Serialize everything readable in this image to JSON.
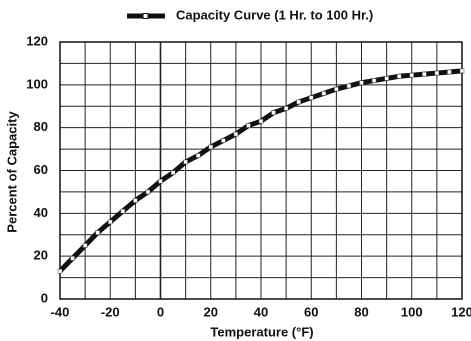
{
  "chart_data": {
    "type": "line",
    "legend_label": "Capacity Curve (1 Hr. to 100 Hr.)",
    "xlabel": "Temperature (°F)",
    "ylabel": "Percent of Capacity",
    "x": [
      -40,
      -35,
      -30,
      -25,
      -20,
      -15,
      -10,
      -5,
      0,
      5,
      10,
      15,
      20,
      25,
      30,
      35,
      40,
      45,
      50,
      55,
      60,
      65,
      70,
      75,
      80,
      85,
      90,
      95,
      100,
      105,
      110,
      115,
      120
    ],
    "series": [
      {
        "name": "Capacity Curve (1 Hr. to 100 Hr.)",
        "color": "#111111",
        "values": [
          13,
          19,
          25,
          31,
          36,
          41,
          46,
          50,
          55,
          59,
          64,
          67,
          71,
          74,
          77,
          81,
          83,
          87,
          89,
          92,
          94,
          96,
          98,
          99.5,
          101,
          102,
          103,
          104,
          104.5,
          105,
          105.5,
          106,
          106.5
        ]
      }
    ],
    "xlim": [
      -40,
      120
    ],
    "ylim": [
      0,
      120
    ],
    "xticks": [
      -40,
      -20,
      0,
      20,
      40,
      60,
      80,
      100,
      120
    ],
    "yticks": [
      0,
      20,
      40,
      60,
      80,
      100,
      120
    ],
    "minor_xticks": [
      -30,
      -10,
      10,
      30,
      50,
      70,
      90,
      110
    ],
    "minor_yticks": [
      10,
      30,
      50,
      70,
      90,
      110
    ],
    "grid": true
  }
}
